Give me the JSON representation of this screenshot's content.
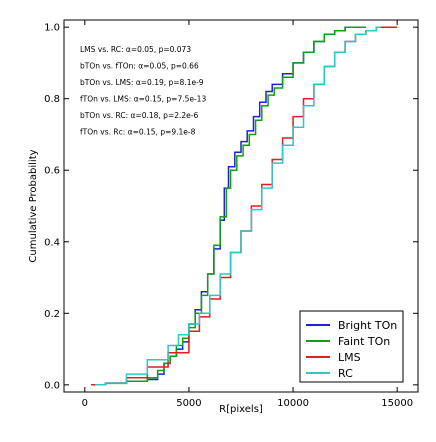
{
  "chart_data": {
    "type": "line",
    "title": "",
    "xlabel": "R[pixels]",
    "ylabel": "Cumulative Probability",
    "xlim": [
      -1000,
      16000
    ],
    "ylim": [
      -0.02,
      1.02
    ],
    "x_ticks": [
      0,
      5000,
      10000,
      15000
    ],
    "x_tick_labels": [
      "0",
      "5000",
      "10000",
      "15000"
    ],
    "y_ticks": [
      0.0,
      0.2,
      0.4,
      0.6,
      0.8,
      1.0
    ],
    "y_tick_labels": [
      "0.0",
      "0.2",
      "0.4",
      "0.6",
      "0.8",
      "1.0"
    ],
    "grid": false,
    "legend_position": "bottom-right",
    "annotations": [
      "LMS  vs. RC:  α=0.05, p=0.073",
      "bTOn vs. fTOn: α=0.05, p=0.66",
      "bTOn vs. LMS: α=0.19, p=8.1e-9",
      "fTOn vs. LMS: α=0.15, p=7.5e-13",
      "bTOn vs. RC: α=0.18, p=2.2e-6",
      "fTOn vs. Rc: α=0.15, p=9.1e-8"
    ],
    "series": [
      {
        "name": "Bright TOn",
        "color": "#1f1fdc",
        "points": [
          [
            500,
            0.0
          ],
          [
            1000,
            0.005
          ],
          [
            2000,
            0.01
          ],
          [
            3000,
            0.015
          ],
          [
            3500,
            0.03
          ],
          [
            3800,
            0.06
          ],
          [
            4100,
            0.08
          ],
          [
            4400,
            0.1
          ],
          [
            4700,
            0.12
          ],
          [
            5000,
            0.17
          ],
          [
            5300,
            0.21
          ],
          [
            5600,
            0.26
          ],
          [
            5900,
            0.31
          ],
          [
            6200,
            0.38
          ],
          [
            6500,
            0.46
          ],
          [
            6700,
            0.55
          ],
          [
            6900,
            0.61
          ],
          [
            7200,
            0.65
          ],
          [
            7500,
            0.68
          ],
          [
            7800,
            0.71
          ],
          [
            8100,
            0.75
          ],
          [
            8400,
            0.79
          ],
          [
            8700,
            0.82
          ],
          [
            9000,
            0.84
          ],
          [
            9500,
            0.87
          ],
          [
            10000,
            0.9
          ],
          [
            10500,
            0.93
          ],
          [
            11000,
            0.96
          ],
          [
            11500,
            0.98
          ],
          [
            12000,
            0.99
          ],
          [
            12500,
            1.0
          ],
          [
            13000,
            1.0
          ]
        ]
      },
      {
        "name": "Faint TOn",
        "color": "#11a011",
        "points": [
          [
            500,
            0.0
          ],
          [
            1000,
            0.004
          ],
          [
            2000,
            0.01
          ],
          [
            3000,
            0.02
          ],
          [
            3500,
            0.04
          ],
          [
            3800,
            0.06
          ],
          [
            4100,
            0.08
          ],
          [
            4400,
            0.11
          ],
          [
            4700,
            0.13
          ],
          [
            5000,
            0.16
          ],
          [
            5300,
            0.2
          ],
          [
            5600,
            0.25
          ],
          [
            5900,
            0.31
          ],
          [
            6200,
            0.39
          ],
          [
            6500,
            0.47
          ],
          [
            6800,
            0.55
          ],
          [
            7000,
            0.6
          ],
          [
            7300,
            0.64
          ],
          [
            7600,
            0.67
          ],
          [
            7900,
            0.7
          ],
          [
            8200,
            0.74
          ],
          [
            8500,
            0.78
          ],
          [
            8800,
            0.81
          ],
          [
            9100,
            0.83
          ],
          [
            9500,
            0.86
          ],
          [
            10000,
            0.9
          ],
          [
            10500,
            0.93
          ],
          [
            11000,
            0.96
          ],
          [
            11500,
            0.98
          ],
          [
            12000,
            0.99
          ],
          [
            12500,
            1.0
          ],
          [
            13500,
            1.0
          ]
        ]
      },
      {
        "name": "LMS",
        "color": "#dc1f1f",
        "points": [
          [
            300,
            0.0
          ],
          [
            1000,
            0.005
          ],
          [
            2000,
            0.02
          ],
          [
            3000,
            0.05
          ],
          [
            4000,
            0.09
          ],
          [
            5000,
            0.15
          ],
          [
            5500,
            0.19
          ],
          [
            6000,
            0.24
          ],
          [
            6500,
            0.3
          ],
          [
            7000,
            0.37
          ],
          [
            7500,
            0.43
          ],
          [
            8000,
            0.5
          ],
          [
            8500,
            0.56
          ],
          [
            9000,
            0.63
          ],
          [
            9500,
            0.69
          ],
          [
            10000,
            0.75
          ],
          [
            10500,
            0.8
          ],
          [
            11000,
            0.84
          ],
          [
            11500,
            0.89
          ],
          [
            12000,
            0.93
          ],
          [
            12500,
            0.96
          ],
          [
            13000,
            0.98
          ],
          [
            13500,
            0.99
          ],
          [
            14000,
            1.0
          ],
          [
            15000,
            1.0
          ]
        ]
      },
      {
        "name": "RC",
        "color": "#2fc6c6",
        "points": [
          [
            500,
            0.0
          ],
          [
            1000,
            0.005
          ],
          [
            2000,
            0.03
          ],
          [
            3000,
            0.07
          ],
          [
            4000,
            0.11
          ],
          [
            4500,
            0.14
          ],
          [
            5000,
            0.17
          ],
          [
            5500,
            0.2
          ],
          [
            6000,
            0.25
          ],
          [
            6500,
            0.31
          ],
          [
            7000,
            0.37
          ],
          [
            7500,
            0.43
          ],
          [
            8000,
            0.49
          ],
          [
            8500,
            0.55
          ],
          [
            9000,
            0.62
          ],
          [
            9500,
            0.67
          ],
          [
            10000,
            0.72
          ],
          [
            10500,
            0.78
          ],
          [
            11000,
            0.84
          ],
          [
            11500,
            0.89
          ],
          [
            12000,
            0.93
          ],
          [
            12500,
            0.96
          ],
          [
            13000,
            0.98
          ],
          [
            13500,
            0.99
          ],
          [
            14000,
            1.0
          ],
          [
            14200,
            1.0
          ]
        ]
      }
    ]
  }
}
